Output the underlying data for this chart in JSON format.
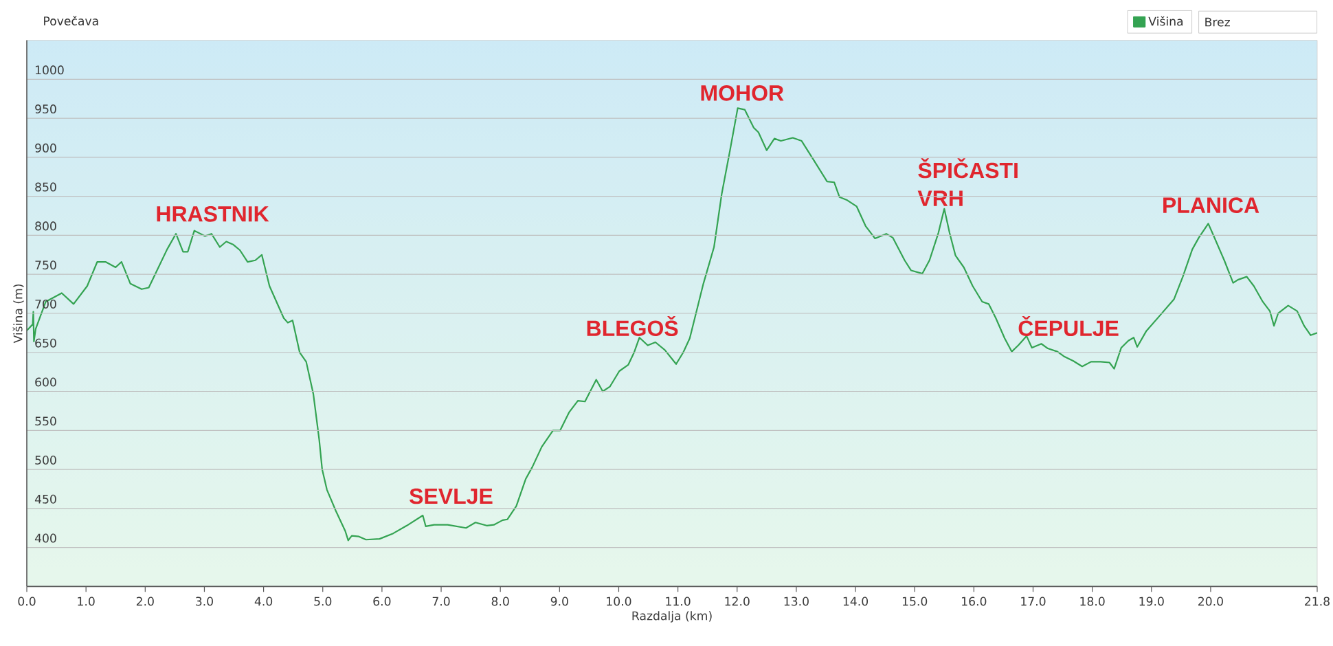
{
  "chart_data": {
    "type": "line",
    "xlabel": "Razdalja (km)",
    "ylabel": "Višina (m)",
    "x": [
      0.0,
      0.1,
      0.11,
      0.12,
      0.15,
      0.32,
      0.59,
      0.79,
      1.02,
      1.19,
      1.33,
      1.5,
      1.6,
      1.75,
      1.94,
      2.06,
      2.18,
      2.37,
      2.52,
      2.64,
      2.72,
      2.83,
      3.01,
      3.12,
      3.26,
      3.37,
      3.49,
      3.6,
      3.73,
      3.86,
      3.97,
      4.1,
      4.34,
      4.41,
      4.49,
      4.61,
      4.72,
      4.84,
      4.94,
      4.99,
      5.07,
      5.22,
      5.38,
      5.43,
      5.49,
      5.61,
      5.73,
      5.96,
      6.19,
      6.42,
      6.69,
      6.74,
      6.88,
      7.11,
      7.42,
      7.58,
      7.77,
      7.89,
      8.04,
      8.12,
      8.27,
      8.43,
      8.54,
      8.7,
      8.89,
      9.01,
      9.16,
      9.31,
      9.43,
      9.62,
      9.73,
      9.85,
      10.01,
      10.16,
      10.26,
      10.35,
      10.49,
      10.62,
      10.78,
      10.97,
      11.09,
      11.2,
      11.43,
      11.61,
      11.74,
      11.88,
      12.01,
      12.13,
      12.28,
      12.36,
      12.5,
      12.63,
      12.74,
      12.94,
      13.09,
      13.29,
      13.52,
      13.64,
      13.73,
      13.86,
      14.02,
      14.17,
      14.33,
      14.52,
      14.63,
      14.83,
      14.94,
      15.13,
      15.25,
      15.4,
      15.5,
      15.59,
      15.69,
      15.83,
      15.98,
      16.14,
      16.25,
      16.37,
      16.52,
      16.64,
      16.75,
      16.89,
      16.98,
      17.14,
      17.25,
      17.41,
      17.52,
      17.68,
      17.83,
      17.98,
      18.14,
      18.29,
      18.37,
      18.49,
      18.61,
      18.7,
      18.76,
      18.91,
      19.14,
      19.38,
      19.53,
      19.69,
      19.8,
      19.96,
      20.03,
      20.23,
      20.38,
      20.46,
      20.61,
      20.73,
      20.88,
      21.0,
      21.07,
      21.14,
      21.31,
      21.46,
      21.58,
      21.69,
      21.8
    ],
    "series": [
      {
        "name": "Višina",
        "color": "#34a352",
        "values": [
          678,
          686,
          702,
          664,
          680,
          715,
          726,
          712,
          735,
          766,
          766,
          759,
          766,
          738,
          731,
          733,
          752,
          782,
          802,
          779,
          779,
          806,
          799,
          802,
          785,
          792,
          788,
          781,
          766,
          768,
          775,
          735,
          694,
          688,
          691,
          650,
          638,
          597,
          538,
          500,
          474,
          447,
          421,
          409,
          415,
          414,
          410,
          411,
          418,
          428,
          441,
          427,
          429,
          429,
          425,
          432,
          428,
          429,
          435,
          436,
          453,
          488,
          503,
          529,
          550,
          550,
          573,
          588,
          587,
          615,
          600,
          606,
          626,
          634,
          650,
          669,
          659,
          663,
          653,
          635,
          650,
          668,
          738,
          785,
          853,
          909,
          963,
          961,
          938,
          932,
          909,
          924,
          921,
          925,
          921,
          897,
          869,
          868,
          849,
          845,
          837,
          812,
          796,
          802,
          797,
          768,
          755,
          751,
          768,
          803,
          834,
          803,
          774,
          759,
          735,
          715,
          712,
          694,
          668,
          651,
          659,
          671,
          656,
          661,
          655,
          651,
          645,
          639,
          632,
          638,
          638,
          637,
          629,
          656,
          665,
          669,
          657,
          677,
          697,
          718,
          747,
          782,
          797,
          815,
          803,
          768,
          739,
          743,
          747,
          735,
          715,
          703,
          684,
          700,
          710,
          703,
          684,
          672,
          675
        ]
      }
    ],
    "xlim": [
      0,
      21.8
    ],
    "ylim": [
      350,
      1050
    ],
    "xticks": [
      {
        "value": 0,
        "label": "0.0"
      },
      {
        "value": 1,
        "label": "1.0"
      },
      {
        "value": 2,
        "label": "2.0"
      },
      {
        "value": 3,
        "label": "3.0"
      },
      {
        "value": 4,
        "label": "4.0"
      },
      {
        "value": 5,
        "label": "5.0"
      },
      {
        "value": 6,
        "label": "6.0"
      },
      {
        "value": 7,
        "label": "7.0"
      },
      {
        "value": 8,
        "label": "8.0"
      },
      {
        "value": 9,
        "label": "9.0"
      },
      {
        "value": 10,
        "label": "10.0"
      },
      {
        "value": 11,
        "label": "11.0"
      },
      {
        "value": 12,
        "label": "12.0"
      },
      {
        "value": 13,
        "label": "13.0"
      },
      {
        "value": 14,
        "label": "14.0"
      },
      {
        "value": 15,
        "label": "15.0"
      },
      {
        "value": 16,
        "label": "16.0"
      },
      {
        "value": 17,
        "label": "17.0"
      },
      {
        "value": 18,
        "label": "18.0"
      },
      {
        "value": 19,
        "label": "19.0"
      },
      {
        "value": 20,
        "label": "20.0"
      },
      21.8
    ],
    "yticks": [
      400,
      450,
      500,
      550,
      600,
      650,
      700,
      750,
      800,
      850,
      900,
      950,
      1000
    ],
    "grid": "y",
    "legend": "top right",
    "annotations": [
      "Povečava",
      "Brez",
      "HRASTNIK",
      "SEVLJE",
      "BLEGOŠ",
      "MOHOR",
      "ŠPIČASTI VRH",
      "ČEPULJE",
      "PLANICA"
    ]
  }
}
